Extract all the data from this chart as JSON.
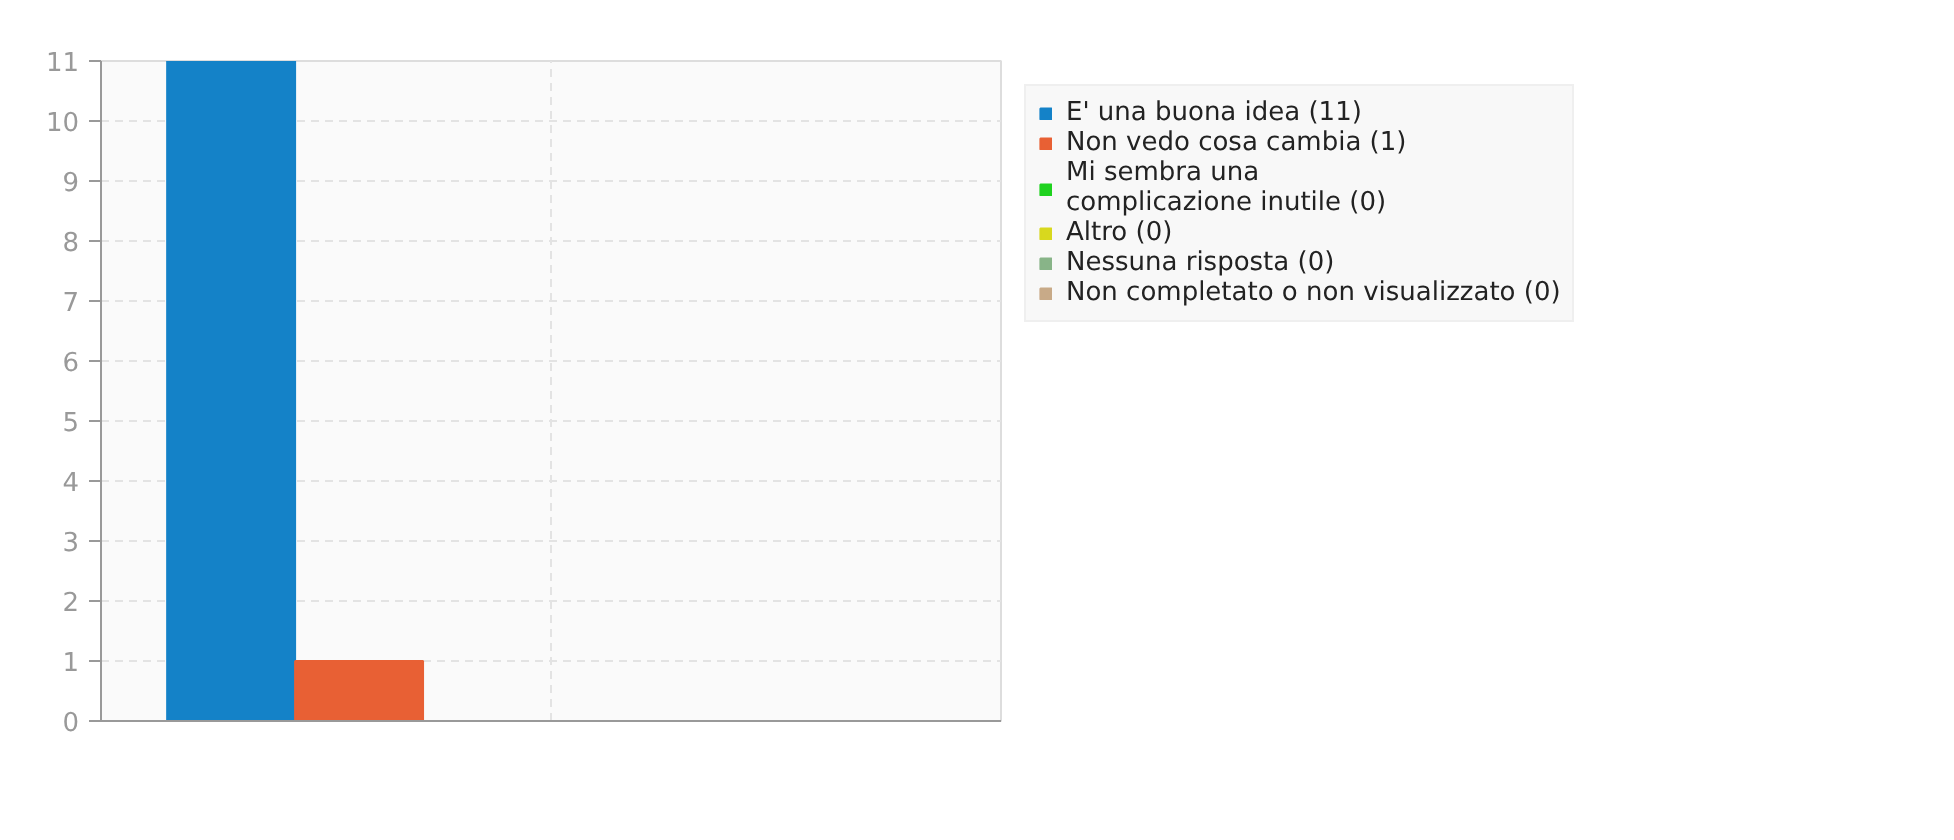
{
  "chart_data": {
    "type": "bar",
    "categories": [
      null
    ],
    "series": [
      {
        "name": "E' una buona idea (11)",
        "color": "#1482c8",
        "values": [
          11
        ]
      },
      {
        "name": "Non vedo cosa cambia (1)",
        "color": "#e86034",
        "values": [
          1
        ]
      },
      {
        "name": "Mi sembra una\ncomplicazione inutile (0)",
        "color": "#1fd21f",
        "values": [
          0
        ]
      },
      {
        "name": "Altro (0)",
        "color": "#d8d81e",
        "values": [
          0
        ]
      },
      {
        "name": "Nessuna risposta (0)",
        "color": "#88b488",
        "values": [
          0
        ]
      },
      {
        "name": "Non completato o non visualizzato (0)",
        "color": "#c8aa88",
        "values": [
          0
        ]
      }
    ],
    "ylim": [
      0,
      11
    ],
    "yticks": [
      0,
      1,
      2,
      3,
      4,
      5,
      6,
      7,
      8,
      9,
      10,
      11
    ],
    "grid": true,
    "legend": "top right",
    "tick_labels": "y"
  }
}
